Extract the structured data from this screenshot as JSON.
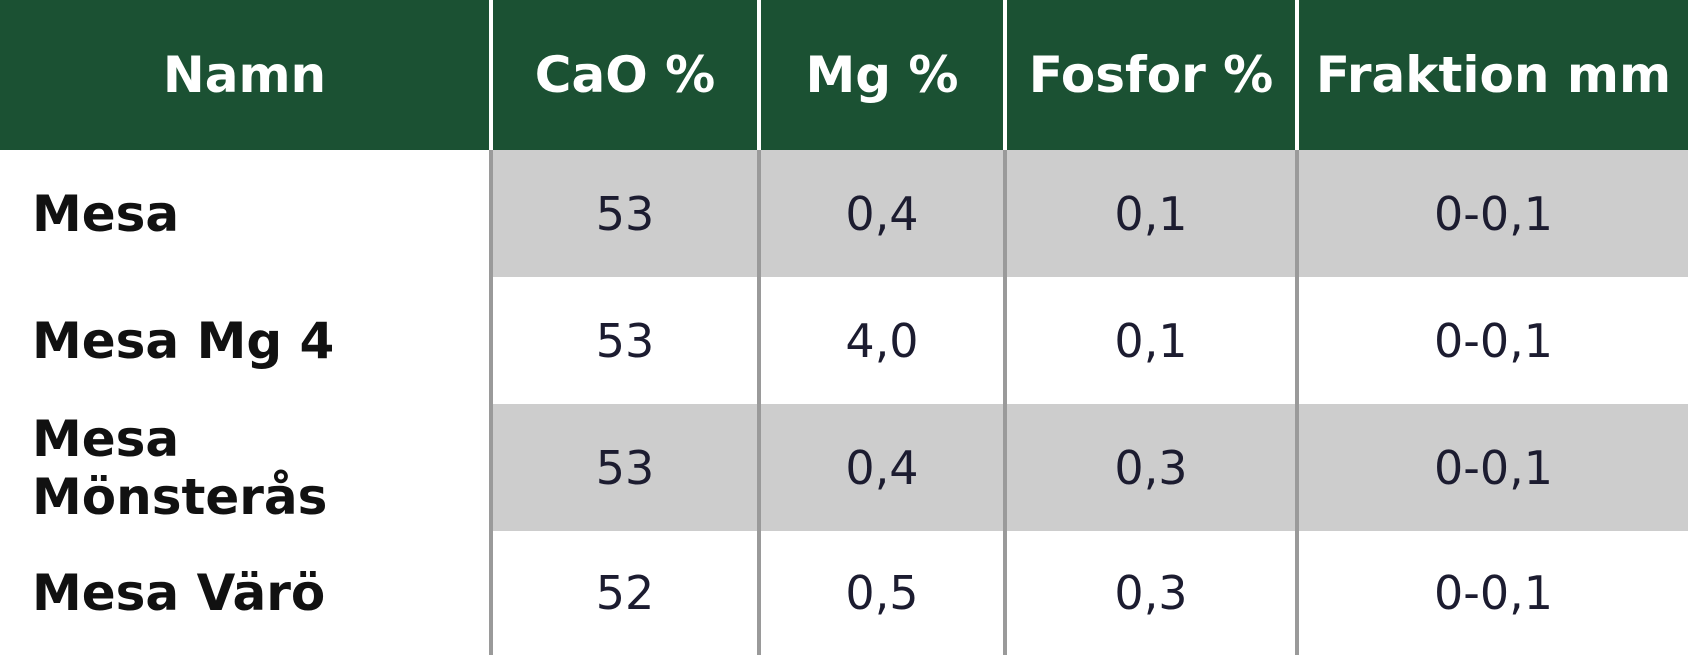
{
  "table": {
    "headers": [
      "Namn",
      "CaO %",
      "Mg %",
      "Fosfor %",
      "Fraktion mm"
    ],
    "rows": [
      [
        "Mesa",
        "53",
        "0,4",
        "0,1",
        "0-0,1"
      ],
      [
        "Mesa Mg 4",
        "53",
        "4,0",
        "0,1",
        "0-0,1"
      ],
      [
        "Mesa Mönsterås",
        "53",
        "0,4",
        "0,3",
        "0-0,1"
      ],
      [
        "Mesa Värö",
        "52",
        "0,5",
        "0,3",
        "0-0,1"
      ]
    ]
  },
  "colors": {
    "header_bg": "#1b5133",
    "header_text": "#ffffff",
    "row_shade": "#cdcdcd",
    "divider": "#9a9a9a"
  }
}
